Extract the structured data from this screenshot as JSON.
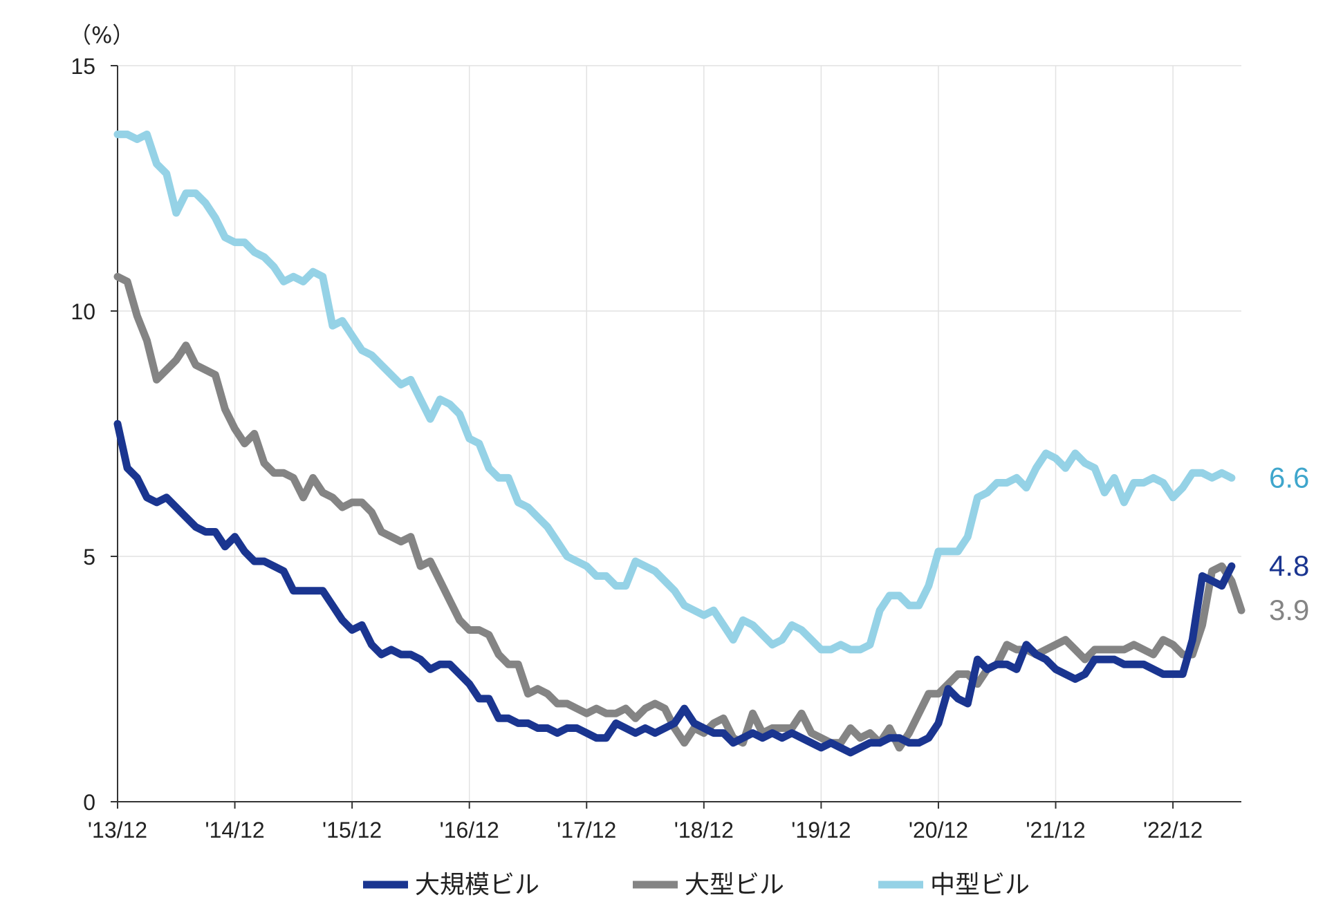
{
  "chart_data": {
    "type": "line",
    "unit_label": "（%）",
    "x_tick_labels": [
      "'13/12",
      "'14/12",
      "'15/12",
      "'16/12",
      "'17/12",
      "'18/12",
      "'19/12",
      "'20/12",
      "'21/12",
      "'22/12"
    ],
    "y_tick_labels": [
      "0",
      "5",
      "10",
      "15"
    ],
    "ylim": [
      0,
      15
    ],
    "x_range_months": [
      0,
      115
    ],
    "grid": true,
    "legend_placement": "bottom",
    "series": [
      {
        "name": "大規模ビル",
        "color": "#1a3590",
        "end_label": "4.8",
        "end_label_color": "#1a3590",
        "values": [
          7.7,
          6.8,
          6.6,
          6.2,
          6.1,
          6.2,
          6.0,
          5.8,
          5.6,
          5.5,
          5.5,
          5.2,
          5.4,
          5.1,
          4.9,
          4.9,
          4.8,
          4.7,
          4.3,
          4.3,
          4.3,
          4.3,
          4.0,
          3.7,
          3.5,
          3.6,
          3.2,
          3.0,
          3.1,
          3.0,
          3.0,
          2.9,
          2.7,
          2.8,
          2.8,
          2.6,
          2.4,
          2.1,
          2.1,
          1.7,
          1.7,
          1.6,
          1.6,
          1.5,
          1.5,
          1.4,
          1.5,
          1.5,
          1.4,
          1.3,
          1.3,
          1.6,
          1.5,
          1.4,
          1.5,
          1.4,
          1.5,
          1.6,
          1.9,
          1.6,
          1.5,
          1.4,
          1.4,
          1.2,
          1.3,
          1.4,
          1.3,
          1.4,
          1.3,
          1.4,
          1.3,
          1.2,
          1.1,
          1.2,
          1.1,
          1.0,
          1.1,
          1.2,
          1.2,
          1.3,
          1.3,
          1.2,
          1.2,
          1.3,
          1.6,
          2.3,
          2.1,
          2.0,
          2.9,
          2.7,
          2.8,
          2.8,
          2.7,
          3.2,
          3.0,
          2.9,
          2.7,
          2.6,
          2.5,
          2.6,
          2.9,
          2.9,
          2.9,
          2.8,
          2.8,
          2.8,
          2.7,
          2.6,
          2.6,
          2.6,
          3.3,
          4.6,
          4.5,
          4.4,
          4.8
        ]
      },
      {
        "name": "大型ビル",
        "color": "#848484",
        "end_label": "3.9",
        "end_label_color": "#848484",
        "values": [
          10.7,
          10.6,
          9.9,
          9.4,
          8.6,
          8.8,
          9.0,
          9.3,
          8.9,
          8.8,
          8.7,
          8.0,
          7.6,
          7.3,
          7.5,
          6.9,
          6.7,
          6.7,
          6.6,
          6.2,
          6.6,
          6.3,
          6.2,
          6.0,
          6.1,
          6.1,
          5.9,
          5.5,
          5.4,
          5.3,
          5.4,
          4.8,
          4.9,
          4.5,
          4.1,
          3.7,
          3.5,
          3.5,
          3.4,
          3.0,
          2.8,
          2.8,
          2.2,
          2.3,
          2.2,
          2.0,
          2.0,
          1.9,
          1.8,
          1.9,
          1.8,
          1.8,
          1.9,
          1.7,
          1.9,
          2.0,
          1.9,
          1.5,
          1.2,
          1.5,
          1.4,
          1.6,
          1.7,
          1.3,
          1.2,
          1.8,
          1.4,
          1.5,
          1.5,
          1.5,
          1.8,
          1.4,
          1.3,
          1.2,
          1.2,
          1.5,
          1.3,
          1.4,
          1.2,
          1.5,
          1.1,
          1.4,
          1.8,
          2.2,
          2.2,
          2.4,
          2.6,
          2.6,
          2.4,
          2.7,
          2.8,
          3.2,
          3.1,
          3.1,
          3.0,
          3.1,
          3.2,
          3.3,
          3.1,
          2.9,
          3.1,
          3.1,
          3.1,
          3.1,
          3.2,
          3.1,
          3.0,
          3.3,
          3.2,
          3.0,
          3.0,
          3.6,
          4.7,
          4.8,
          4.5,
          3.9
        ]
      },
      {
        "name": "中型ビル",
        "color": "#95d2e6",
        "end_label": "6.6",
        "end_label_color": "#3fa6cc",
        "values": [
          13.6,
          13.6,
          13.5,
          13.6,
          13.0,
          12.8,
          12.0,
          12.4,
          12.4,
          12.2,
          11.9,
          11.5,
          11.4,
          11.4,
          11.2,
          11.1,
          10.9,
          10.6,
          10.7,
          10.6,
          10.8,
          10.7,
          9.7,
          9.8,
          9.5,
          9.2,
          9.1,
          8.9,
          8.7,
          8.5,
          8.6,
          8.2,
          7.8,
          8.2,
          8.1,
          7.9,
          7.4,
          7.3,
          6.8,
          6.6,
          6.6,
          6.1,
          6.0,
          5.8,
          5.6,
          5.3,
          5.0,
          4.9,
          4.8,
          4.6,
          4.6,
          4.4,
          4.4,
          4.9,
          4.8,
          4.7,
          4.5,
          4.3,
          4.0,
          3.9,
          3.8,
          3.9,
          3.6,
          3.3,
          3.7,
          3.6,
          3.4,
          3.2,
          3.3,
          3.6,
          3.5,
          3.3,
          3.1,
          3.1,
          3.2,
          3.1,
          3.1,
          3.2,
          3.9,
          4.2,
          4.2,
          4.0,
          4.0,
          4.4,
          5.1,
          5.1,
          5.1,
          5.4,
          6.2,
          6.3,
          6.5,
          6.5,
          6.6,
          6.4,
          6.8,
          7.1,
          7.0,
          6.8,
          7.1,
          6.9,
          6.8,
          6.3,
          6.6,
          6.1,
          6.5,
          6.5,
          6.6,
          6.5,
          6.2,
          6.4,
          6.7,
          6.7,
          6.6,
          6.7,
          6.6
        ]
      }
    ]
  }
}
